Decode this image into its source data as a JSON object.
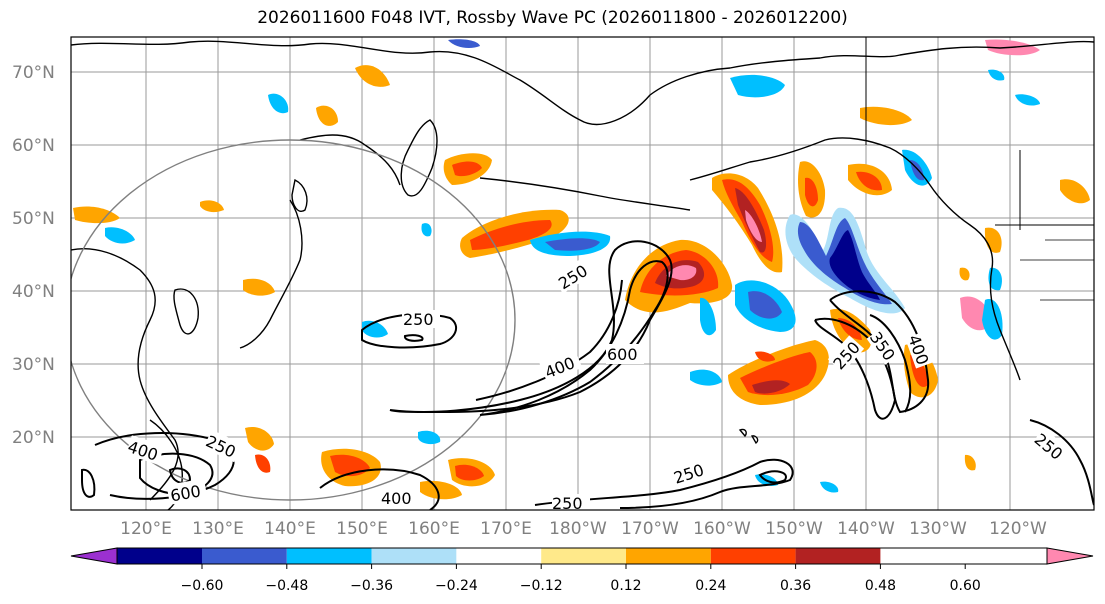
{
  "title": "2026011600 F048 IVT, Rossby Wave PC (2026011800 - 2026012200)",
  "lat_labels": [
    "70°N",
    "60°N",
    "50°N",
    "40°N",
    "30°N",
    "20°N"
  ],
  "lon_labels": [
    "120°E",
    "130°E",
    "140°E",
    "150°E",
    "160°E",
    "170°E",
    "180°W",
    "170°W",
    "160°W",
    "150°W",
    "140°W",
    "130°W",
    "120°W"
  ],
  "colorbar": {
    "ticks": [
      "−0.60",
      "−0.48",
      "−0.36",
      "−0.24",
      "−0.12",
      "0.12",
      "0.24",
      "0.36",
      "0.48",
      "0.60"
    ],
    "colors": [
      "#9b30d0",
      "#00008b",
      "#3a5bcf",
      "#00bfff",
      "#aee0f8",
      "#ffffff",
      "#ffe98a",
      "#ffa500",
      "#ff4000",
      "#b22222",
      "#ff88b0"
    ]
  },
  "ivt_contour_labels": [
    "250",
    "250",
    "400",
    "600",
    "250",
    "400",
    "600",
    "250",
    "250",
    "250",
    "350",
    "400",
    "250",
    "400",
    "250"
  ],
  "colors": {
    "land_outline": "#000000",
    "grid": "#9a9a9a",
    "circle": "#808080",
    "contour": "#000000"
  }
}
